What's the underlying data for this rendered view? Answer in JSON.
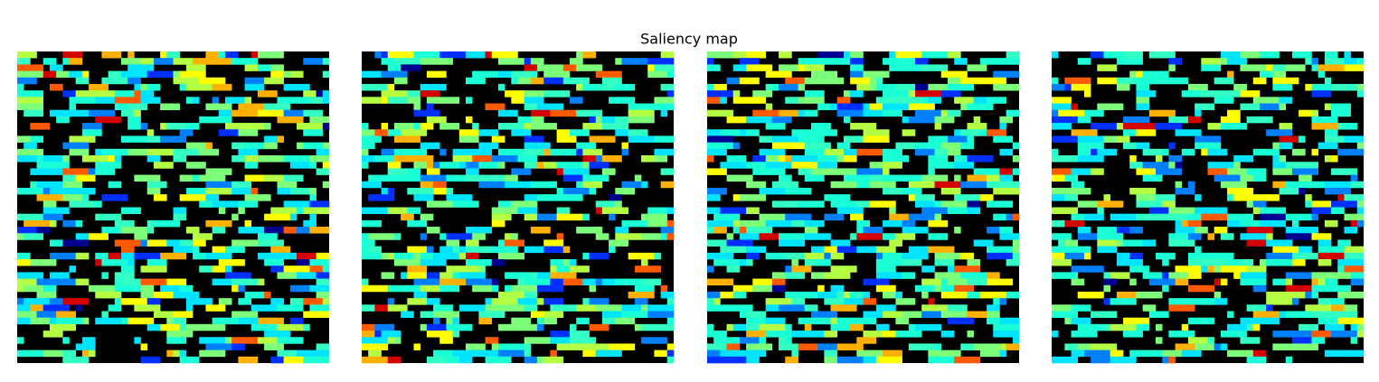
{
  "chart_data": {
    "type": "image",
    "title": "Saliency map"
  }
}
